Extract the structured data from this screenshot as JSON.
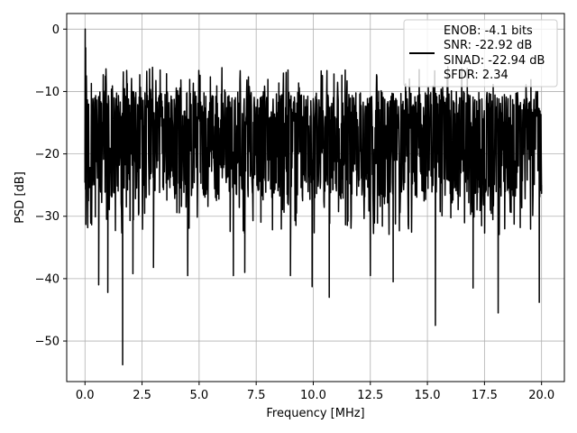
{
  "chart_data": {
    "type": "line",
    "xlabel": "Frequency [MHz]",
    "ylabel": "PSD [dB]",
    "xlim": [
      -0.8,
      21.0
    ],
    "ylim": [
      -56.5,
      2.5
    ],
    "xticks": [
      0.0,
      2.5,
      5.0,
      7.5,
      10.0,
      12.5,
      15.0,
      17.5,
      20.0
    ],
    "xtick_labels": [
      "0.0",
      "2.5",
      "5.0",
      "7.5",
      "10.0",
      "12.5",
      "15.0",
      "17.5",
      "20.0"
    ],
    "yticks": [
      0,
      -10,
      -20,
      -30,
      -40,
      -50
    ],
    "ytick_labels": [
      "0",
      "−10",
      "−20",
      "−30",
      "−40",
      "−50"
    ],
    "grid": true,
    "legend_position": "top-right",
    "legend": [
      "ENOB: -4.1 bits",
      "SNR: -22.92 dB",
      "SINAD: -22.94 dB",
      "SFDR: 2.34"
    ],
    "line_color": "#000000",
    "noise_band": {
      "x_range": [
        0.0,
        20.0
      ],
      "typical_high_db": -10,
      "typical_low_db": -27
    },
    "series": [
      {
        "x": [
          0.0,
          0.01,
          0.03,
          0.06,
          0.1,
          0.15,
          0.6,
          1.0,
          1.65,
          2.1,
          3.0,
          4.5,
          6.5,
          7.0,
          9.0,
          9.95,
          10.7,
          12.5,
          13.5,
          15.35,
          17.0,
          18.1,
          19.9,
          20.0
        ],
        "y": [
          -19,
          0.0,
          -3.0,
          -7.5,
          -15.0,
          -27.5,
          -41.0,
          -42.2,
          -53.8,
          -39.2,
          -38.2,
          -39.5,
          -39.5,
          -39.0,
          -39.5,
          -41.3,
          -43.0,
          -39.5,
          -40.5,
          -47.5,
          -41.5,
          -45.5,
          -43.8,
          -25.0
        ]
      }
    ]
  }
}
